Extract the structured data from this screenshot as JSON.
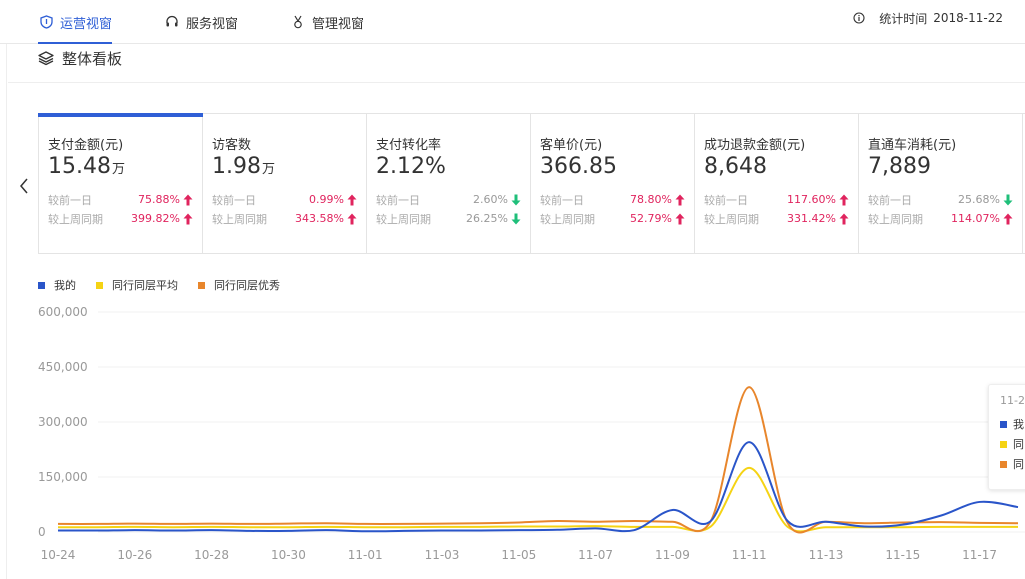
{
  "header": {
    "tabs": [
      {
        "label": "运营视窗",
        "icon": "shield-icon",
        "active": true
      },
      {
        "label": "服务视窗",
        "icon": "headset-icon",
        "active": false
      },
      {
        "label": "管理视窗",
        "icon": "medal-icon",
        "active": false
      }
    ],
    "info_icon": "info-icon",
    "stat_time_label": "统计时间",
    "stat_time_value": "2018-11-22"
  },
  "section": {
    "title": "整体看板",
    "icon": "layers-icon"
  },
  "nav": {
    "prev_icon": "chevron-left-icon"
  },
  "metrics": [
    {
      "title": "支付金额(元)",
      "value": "15.48",
      "unit": "万",
      "active": true,
      "day_label": "较前一日",
      "day_pct": "75.88%",
      "day_dir": "up",
      "week_label": "较上周同期",
      "week_pct": "399.82%",
      "week_dir": "up"
    },
    {
      "title": "访客数",
      "value": "1.98",
      "unit": "万",
      "active": false,
      "day_label": "较前一日",
      "day_pct": "0.99%",
      "day_dir": "up",
      "week_label": "较上周同期",
      "week_pct": "343.58%",
      "week_dir": "up"
    },
    {
      "title": "支付转化率",
      "value": "2.12%",
      "unit": "",
      "active": false,
      "day_label": "较前一日",
      "day_pct": "2.60%",
      "day_dir": "down",
      "week_label": "较上周同期",
      "week_pct": "26.25%",
      "week_dir": "down"
    },
    {
      "title": "客单价(元)",
      "value": "366.85",
      "unit": "",
      "active": false,
      "day_label": "较前一日",
      "day_pct": "78.80%",
      "day_dir": "up",
      "week_label": "较上周同期",
      "week_pct": "52.79%",
      "week_dir": "up"
    },
    {
      "title": "成功退款金额(元)",
      "value": "8,648",
      "unit": "",
      "active": false,
      "day_label": "较前一日",
      "day_pct": "117.60%",
      "day_dir": "up",
      "week_label": "较上周同期",
      "week_pct": "331.42%",
      "week_dir": "up"
    },
    {
      "title": "直通车消耗(元)",
      "value": "7,889",
      "unit": "",
      "active": false,
      "day_label": "较前一日",
      "day_pct": "25.68%",
      "day_dir": "down",
      "week_label": "较上周同期",
      "week_pct": "114.07%",
      "week_dir": "up"
    }
  ],
  "colors": {
    "accent": "#2f5fd6",
    "up": "#e0245e",
    "down": "#1fbf7a",
    "me": "#2a55c9",
    "peer_avg": "#f5d314",
    "peer_top": "#e8862c"
  },
  "chart_data": {
    "type": "line",
    "x": [
      "10-24",
      "10-25",
      "10-26",
      "10-27",
      "10-28",
      "10-29",
      "10-30",
      "10-31",
      "11-01",
      "11-02",
      "11-03",
      "11-04",
      "11-05",
      "11-06",
      "11-07",
      "11-08",
      "11-09",
      "11-10",
      "11-11",
      "11-12",
      "11-13",
      "11-14",
      "11-15",
      "11-16",
      "11-17",
      "11-18"
    ],
    "x_tick_labels": [
      "10-24",
      "10-26",
      "10-28",
      "10-30",
      "11-01",
      "11-03",
      "11-05",
      "11-07",
      "11-09",
      "11-11",
      "11-13",
      "11-15",
      "11-17"
    ],
    "y_tick_labels": [
      "0",
      "150,000",
      "300,000",
      "450,000",
      "600,000"
    ],
    "ylim": [
      0,
      600000
    ],
    "legend_position": "top-left",
    "grid": true,
    "series": [
      {
        "name": "我的",
        "color": "#2a55c9",
        "values": [
          4000,
          4000,
          5000,
          4000,
          5000,
          3000,
          3000,
          5000,
          2000,
          3000,
          4000,
          4000,
          5000,
          6000,
          10000,
          5000,
          60000,
          30000,
          245000,
          30000,
          28000,
          15000,
          20000,
          45000,
          82000,
          68000
        ]
      },
      {
        "name": "同行同层平均",
        "color": "#f5d314",
        "values": [
          13000,
          13000,
          14000,
          13000,
          14000,
          13000,
          13000,
          14000,
          13000,
          13000,
          14000,
          14000,
          15000,
          15000,
          16000,
          14000,
          14000,
          15000,
          175000,
          14000,
          13000,
          13000,
          13000,
          14000,
          14000,
          14000
        ]
      },
      {
        "name": "同行同层优秀",
        "color": "#e8862c",
        "values": [
          22000,
          22000,
          23000,
          22000,
          23000,
          22000,
          23000,
          24000,
          22000,
          22000,
          23000,
          24000,
          26000,
          30000,
          28000,
          30000,
          28000,
          30000,
          395000,
          25000,
          28000,
          24000,
          26000,
          27000,
          25000,
          24000
        ]
      }
    ]
  },
  "tooltip": {
    "title": "11-2",
    "rows": [
      "我",
      "同",
      "同"
    ]
  }
}
